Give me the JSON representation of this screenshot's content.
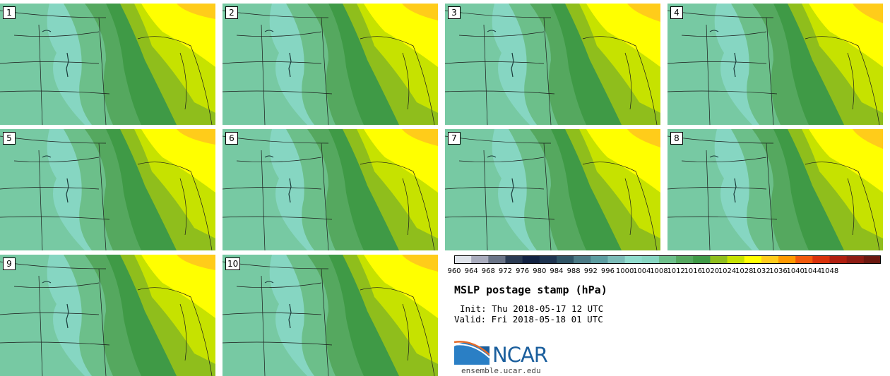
{
  "stamps": [
    {
      "label": "1"
    },
    {
      "label": "2"
    },
    {
      "label": "3"
    },
    {
      "label": "4"
    },
    {
      "label": "5"
    },
    {
      "label": "6"
    },
    {
      "label": "7"
    },
    {
      "label": "8"
    },
    {
      "label": "9"
    },
    {
      "label": "10"
    }
  ],
  "colorbar": {
    "colors": [
      "#dfe3ea",
      "#a9acbd",
      "#6a7487",
      "#2a3a52",
      "#122242",
      "#1e3450",
      "#2f5465",
      "#4b7a85",
      "#5c9da0",
      "#7bbcb8",
      "#8fdccd",
      "#86d6c2",
      "#6cbf8a",
      "#55a85f",
      "#3f9a46",
      "#8fbe1c",
      "#c6e200",
      "#ffff00",
      "#ffcc1a",
      "#ff9900",
      "#f2590b",
      "#d9310a",
      "#b01f10",
      "#8e1c14",
      "#6b1810"
    ],
    "ticks": [
      "960",
      "964",
      "968",
      "972",
      "976",
      "980",
      "984",
      "988",
      "992",
      "996",
      "1000",
      "1004",
      "1008",
      "1012",
      "1016",
      "1020",
      "1024",
      "1028",
      "1032",
      "1036",
      "1040",
      "1044",
      "1048"
    ]
  },
  "title": "MSLP postage stamp (hPa)",
  "init": "Init: Thu 2018-05-17 12 UTC",
  "valid": "Valid: Fri 2018-05-18 01 UTC",
  "logo": {
    "text": "NCAR",
    "site": "ensemble.ucar.edu"
  },
  "map_colors": {
    "c1004": "#86d6c2",
    "c1008": "#6cbf8a",
    "c1012": "#55a85f",
    "c1016": "#3f9a46",
    "c1020": "#8fbe1c",
    "c1024": "#c6e200",
    "c1028": "#ffff00",
    "c1032": "#ffcc1a"
  }
}
